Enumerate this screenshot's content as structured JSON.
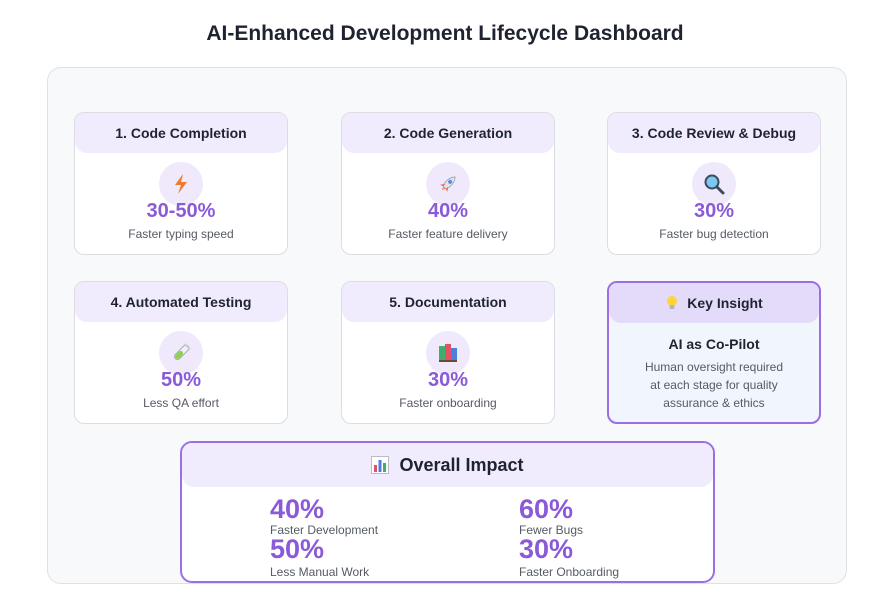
{
  "page": {
    "title": "AI-Enhanced Development Lifecycle Dashboard"
  },
  "stages": [
    {
      "title": "1. Code Completion",
      "icon": "lightning-icon",
      "value": "30-50%",
      "label": "Faster typing speed"
    },
    {
      "title": "2. Code Generation",
      "icon": "rocket-icon",
      "value": "40%",
      "label": "Faster feature delivery"
    },
    {
      "title": "3. Code Review & Debug",
      "icon": "magnifier-icon",
      "value": "30%",
      "label": "Faster bug detection"
    },
    {
      "title": "4. Automated Testing",
      "icon": "test-tube-icon",
      "value": "50%",
      "label": "Less QA effort"
    },
    {
      "title": "5. Documentation",
      "icon": "books-icon",
      "value": "30%",
      "label": "Faster onboarding"
    }
  ],
  "insight": {
    "header": "Key Insight",
    "icon": "lightbulb-icon",
    "title": "AI as Co-Pilot",
    "lines": [
      "Human oversight required",
      "at each stage for quality",
      "assurance & ethics"
    ]
  },
  "overall": {
    "title": "Overall Impact",
    "icon": "bar-chart-icon",
    "metrics": [
      {
        "value": "40%",
        "label": "Faster Development"
      },
      {
        "value": "60%",
        "label": "Fewer Bugs"
      },
      {
        "value": "50%",
        "label": "Less Manual Work"
      },
      {
        "value": "30%",
        "label": "Faster Onboarding"
      }
    ]
  },
  "colors": {
    "accent": "#8a5ad8",
    "header_bg": "#f1ecfd",
    "border_accent": "#9b6ee6"
  }
}
